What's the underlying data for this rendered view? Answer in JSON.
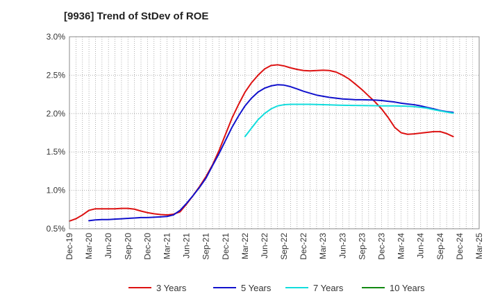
{
  "chart_data": {
    "type": "line",
    "title": "[9936]  Trend of StDev of ROE",
    "xlabel": "",
    "ylabel": "",
    "ylim": [
      0.5,
      3.0
    ],
    "y_ticks": [
      "0.5%",
      "1.0%",
      "1.5%",
      "2.0%",
      "2.5%",
      "3.0%"
    ],
    "x_ticks": [
      "Dec-19",
      "Mar-20",
      "Jun-20",
      "Sep-20",
      "Dec-20",
      "Mar-21",
      "Jun-21",
      "Sep-21",
      "Dec-21",
      "Mar-22",
      "Jun-22",
      "Sep-22",
      "Dec-22",
      "Mar-23",
      "Jun-23",
      "Sep-23",
      "Dec-23",
      "Mar-24",
      "Jun-24",
      "Sep-24",
      "Dec-24",
      "Mar-25"
    ],
    "grid": true,
    "legend_position": "bottom",
    "series": [
      {
        "name": "3 Years",
        "color": "#dd1111",
        "points": [
          [
            0,
            0.6
          ],
          [
            0.33,
            0.63
          ],
          [
            0.67,
            0.68
          ],
          [
            1,
            0.74
          ],
          [
            1.33,
            0.76
          ],
          [
            1.67,
            0.76
          ],
          [
            2,
            0.76
          ],
          [
            2.33,
            0.76
          ],
          [
            2.67,
            0.765
          ],
          [
            3,
            0.765
          ],
          [
            3.33,
            0.755
          ],
          [
            3.67,
            0.73
          ],
          [
            4,
            0.71
          ],
          [
            4.33,
            0.695
          ],
          [
            4.67,
            0.685
          ],
          [
            5,
            0.68
          ],
          [
            5.33,
            0.69
          ],
          [
            5.67,
            0.72
          ],
          [
            6,
            0.82
          ],
          [
            6.33,
            0.93
          ],
          [
            6.67,
            1.05
          ],
          [
            7,
            1.18
          ],
          [
            7.33,
            1.33
          ],
          [
            7.67,
            1.52
          ],
          [
            8,
            1.73
          ],
          [
            8.33,
            1.94
          ],
          [
            8.67,
            2.12
          ],
          [
            9,
            2.28
          ],
          [
            9.33,
            2.4
          ],
          [
            9.67,
            2.5
          ],
          [
            10,
            2.58
          ],
          [
            10.33,
            2.625
          ],
          [
            10.67,
            2.635
          ],
          [
            11,
            2.62
          ],
          [
            11.33,
            2.595
          ],
          [
            11.67,
            2.575
          ],
          [
            12,
            2.56
          ],
          [
            12.33,
            2.555
          ],
          [
            12.67,
            2.56
          ],
          [
            13,
            2.565
          ],
          [
            13.33,
            2.56
          ],
          [
            13.67,
            2.54
          ],
          [
            14,
            2.5
          ],
          [
            14.33,
            2.45
          ],
          [
            14.67,
            2.38
          ],
          [
            15,
            2.31
          ],
          [
            15.33,
            2.23
          ],
          [
            15.67,
            2.15
          ],
          [
            16,
            2.06
          ],
          [
            16.33,
            1.95
          ],
          [
            16.67,
            1.82
          ],
          [
            17,
            1.75
          ],
          [
            17.33,
            1.73
          ],
          [
            17.67,
            1.735
          ],
          [
            18,
            1.745
          ],
          [
            18.33,
            1.755
          ],
          [
            18.67,
            1.765
          ],
          [
            19,
            1.765
          ],
          [
            19.33,
            1.74
          ],
          [
            19.67,
            1.7
          ]
        ]
      },
      {
        "name": "5 Years",
        "color": "#1111cc",
        "points": [
          [
            1,
            0.605
          ],
          [
            1.33,
            0.615
          ],
          [
            1.67,
            0.62
          ],
          [
            2,
            0.62
          ],
          [
            2.33,
            0.625
          ],
          [
            2.67,
            0.63
          ],
          [
            3,
            0.635
          ],
          [
            3.33,
            0.64
          ],
          [
            3.67,
            0.645
          ],
          [
            4,
            0.645
          ],
          [
            4.33,
            0.65
          ],
          [
            4.67,
            0.655
          ],
          [
            5,
            0.66
          ],
          [
            5.33,
            0.68
          ],
          [
            5.67,
            0.74
          ],
          [
            6,
            0.83
          ],
          [
            6.33,
            0.93
          ],
          [
            6.67,
            1.04
          ],
          [
            7,
            1.16
          ],
          [
            7.33,
            1.32
          ],
          [
            7.67,
            1.48
          ],
          [
            8,
            1.65
          ],
          [
            8.33,
            1.82
          ],
          [
            8.67,
            1.97
          ],
          [
            9,
            2.1
          ],
          [
            9.33,
            2.2
          ],
          [
            9.67,
            2.28
          ],
          [
            10,
            2.33
          ],
          [
            10.33,
            2.36
          ],
          [
            10.67,
            2.375
          ],
          [
            11,
            2.37
          ],
          [
            11.33,
            2.35
          ],
          [
            11.67,
            2.32
          ],
          [
            12,
            2.29
          ],
          [
            12.33,
            2.265
          ],
          [
            12.67,
            2.24
          ],
          [
            13,
            2.225
          ],
          [
            13.33,
            2.21
          ],
          [
            13.67,
            2.2
          ],
          [
            14,
            2.19
          ],
          [
            14.33,
            2.185
          ],
          [
            14.67,
            2.18
          ],
          [
            15,
            2.18
          ],
          [
            15.33,
            2.178
          ],
          [
            15.67,
            2.175
          ],
          [
            16,
            2.17
          ],
          [
            16.33,
            2.16
          ],
          [
            16.67,
            2.15
          ],
          [
            17,
            2.135
          ],
          [
            17.33,
            2.125
          ],
          [
            17.67,
            2.115
          ],
          [
            18,
            2.1
          ],
          [
            18.33,
            2.08
          ],
          [
            18.67,
            2.06
          ],
          [
            19,
            2.04
          ],
          [
            19.33,
            2.025
          ],
          [
            19.67,
            2.015
          ]
        ]
      },
      {
        "name": "7 Years",
        "color": "#11dddd",
        "points": [
          [
            9,
            1.7
          ],
          [
            9.33,
            1.81
          ],
          [
            9.67,
            1.92
          ],
          [
            10,
            2.0
          ],
          [
            10.33,
            2.06
          ],
          [
            10.67,
            2.1
          ],
          [
            11,
            2.115
          ],
          [
            11.33,
            2.12
          ],
          [
            11.67,
            2.12
          ],
          [
            12,
            2.12
          ],
          [
            12.33,
            2.12
          ],
          [
            12.67,
            2.118
          ],
          [
            13,
            2.115
          ],
          [
            13.33,
            2.113
          ],
          [
            13.67,
            2.11
          ],
          [
            14,
            2.108
          ],
          [
            14.33,
            2.106
          ],
          [
            14.67,
            2.105
          ],
          [
            15,
            2.104
          ],
          [
            15.33,
            2.103
          ],
          [
            15.67,
            2.102
          ],
          [
            16,
            2.1
          ],
          [
            16.33,
            2.1
          ],
          [
            16.67,
            2.1
          ],
          [
            17,
            2.098
          ],
          [
            17.33,
            2.095
          ],
          [
            17.67,
            2.09
          ],
          [
            18,
            2.08
          ],
          [
            18.33,
            2.07
          ],
          [
            18.67,
            2.05
          ],
          [
            19,
            2.035
          ],
          [
            19.33,
            2.02
          ],
          [
            19.67,
            2.005
          ]
        ]
      },
      {
        "name": "10 Years",
        "color": "#118811",
        "points": []
      }
    ]
  }
}
